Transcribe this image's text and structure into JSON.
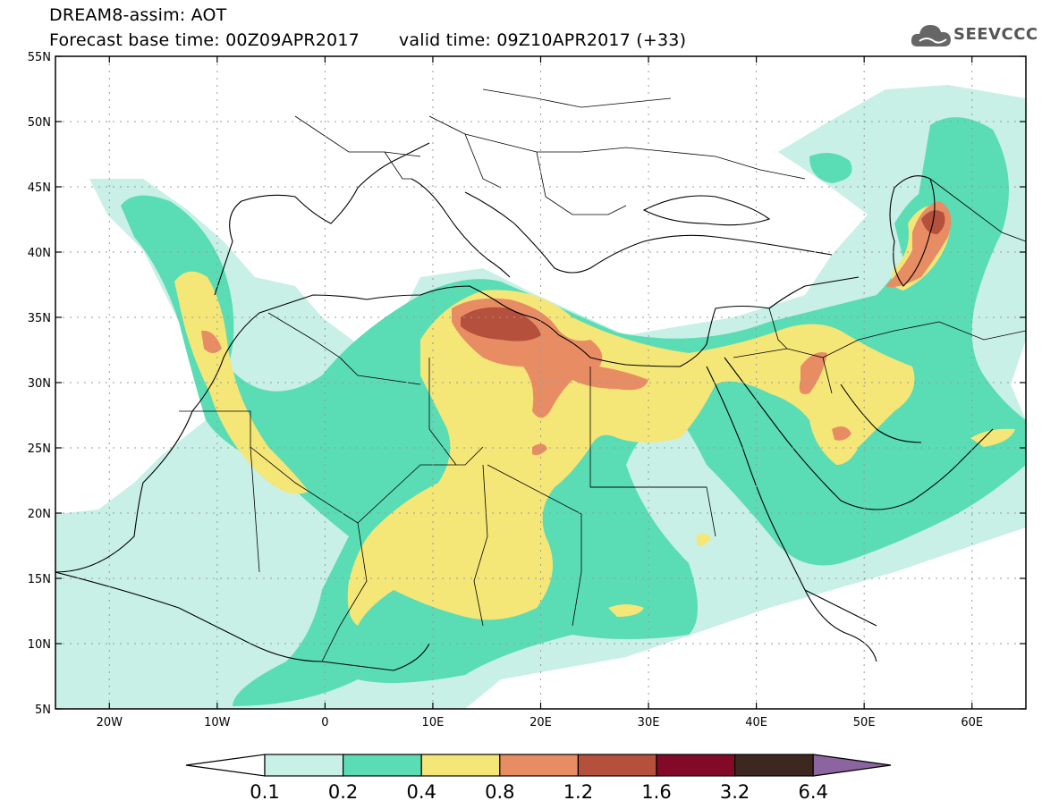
{
  "title": {
    "line1": "DREAM8-assim: AOT",
    "base_time": "Forecast base time: 00Z09APR2017",
    "valid_time": "valid time: 09Z10APR2017 (+33)"
  },
  "logo": {
    "text": "SEEVCCC",
    "icon": "cloud-icon"
  },
  "map": {
    "lon_range": [
      -25,
      65
    ],
    "lat_range": [
      5,
      55
    ],
    "lat_ticks": [
      {
        "v": 55,
        "label": "55N"
      },
      {
        "v": 50,
        "label": "50N"
      },
      {
        "v": 45,
        "label": "45N"
      },
      {
        "v": 40,
        "label": "40N"
      },
      {
        "v": 35,
        "label": "35N"
      },
      {
        "v": 30,
        "label": "30N"
      },
      {
        "v": 25,
        "label": "25N"
      },
      {
        "v": 20,
        "label": "20N"
      },
      {
        "v": 15,
        "label": "15N"
      },
      {
        "v": 10,
        "label": "10N"
      },
      {
        "v": 5,
        "label": "5N"
      }
    ],
    "lon_ticks": [
      {
        "v": -20,
        "label": "20W"
      },
      {
        "v": -10,
        "label": "10W"
      },
      {
        "v": 0,
        "label": "0"
      },
      {
        "v": 10,
        "label": "10E"
      },
      {
        "v": 20,
        "label": "20E"
      },
      {
        "v": 30,
        "label": "30E"
      },
      {
        "v": 40,
        "label": "40E"
      },
      {
        "v": 50,
        "label": "50E"
      },
      {
        "v": 60,
        "label": "60E"
      }
    ],
    "grid": "dotted"
  },
  "colorbar": {
    "levels": [
      "0.1",
      "0.2",
      "0.4",
      "0.8",
      "1.2",
      "1.6",
      "3.2",
      "6.4"
    ],
    "colors": [
      "#c8f0e6",
      "#5adcb4",
      "#f5e678",
      "#e88c64",
      "#b4503c",
      "#820a28",
      "#3c281e"
    ],
    "under_color": "#ffffff",
    "over_color": "#8c64a0"
  }
}
